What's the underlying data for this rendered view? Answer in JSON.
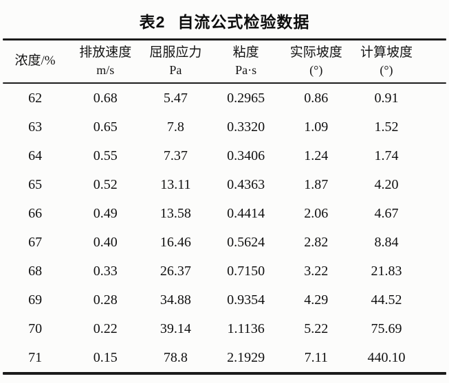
{
  "caption": {
    "label": "表2",
    "title": "自流公式检验数据"
  },
  "table": {
    "columns": [
      {
        "id": "concentration",
        "name_lines": [
          "浓度/%"
        ]
      },
      {
        "id": "discharge-velocity",
        "name_lines": [
          "排放速度",
          "m/s"
        ]
      },
      {
        "id": "yield-stress",
        "name_lines": [
          "屈服应力",
          "Pa"
        ]
      },
      {
        "id": "viscosity",
        "name_lines": [
          "粘度",
          "Pa·s"
        ]
      },
      {
        "id": "actual-slope",
        "name_lines": [
          "实际坡度",
          "(°)"
        ]
      },
      {
        "id": "calculated-slope",
        "name_lines": [
          "计算坡度",
          "(°)"
        ]
      }
    ],
    "rows": [
      [
        "62",
        "0.68",
        "5.47",
        "0.2965",
        "0.86",
        "0.91"
      ],
      [
        "63",
        "0.65",
        "7.8",
        "0.3320",
        "1.09",
        "1.52"
      ],
      [
        "64",
        "0.55",
        "7.37",
        "0.3406",
        "1.24",
        "1.74"
      ],
      [
        "65",
        "0.52",
        "13.11",
        "0.4363",
        "1.87",
        "4.20"
      ],
      [
        "66",
        "0.49",
        "13.58",
        "0.4414",
        "2.06",
        "4.67"
      ],
      [
        "67",
        "0.40",
        "16.46",
        "0.5624",
        "2.82",
        "8.84"
      ],
      [
        "68",
        "0.33",
        "26.37",
        "0.7150",
        "3.22",
        "21.83"
      ],
      [
        "69",
        "0.28",
        "34.88",
        "0.9354",
        "4.29",
        "44.52"
      ],
      [
        "70",
        "0.22",
        "39.14",
        "1.1136",
        "5.22",
        "75.69"
      ],
      [
        "71",
        "0.15",
        "78.8",
        "2.1929",
        "7.11",
        "440.10"
      ]
    ]
  },
  "colors": {
    "text": "#111111",
    "rule": "#1b1b1b",
    "paper": "#fcfcfb"
  }
}
